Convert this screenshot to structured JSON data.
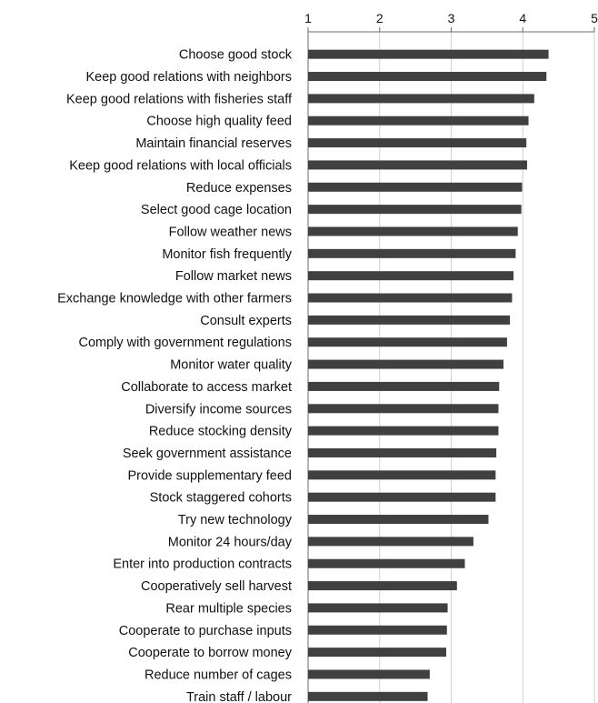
{
  "chart_data": {
    "type": "bar",
    "orientation": "horizontal",
    "title": "",
    "xlabel": "",
    "ylabel": "",
    "xlim": [
      1,
      5
    ],
    "x_ticks": [
      "1",
      "2",
      "3",
      "4",
      "5"
    ],
    "x_axis_position": "top",
    "grid": true,
    "legend": "none",
    "bar_color": "#404040",
    "categories": [
      "Choose good stock",
      "Keep good relations with neighbors",
      "Keep good relations with fisheries staff",
      "Choose high quality feed",
      "Maintain financial reserves",
      "Keep good relations with local officials",
      "Reduce expenses",
      "Select good cage location",
      "Follow weather news",
      "Monitor fish frequently",
      "Follow market news",
      "Exchange knowledge with other farmers",
      "Consult experts",
      "Comply with government regulations",
      "Monitor water quality",
      "Collaborate to access market",
      "Diversify income sources",
      "Reduce stocking density",
      "Seek government assistance",
      "Provide supplementary feed",
      "Stock staggered cohorts",
      "Try new technology",
      "Monitor 24 hours/day",
      "Enter into production contracts",
      "Cooperatively sell harvest",
      "Rear multiple species",
      "Cooperate to purchase inputs",
      "Cooperate to borrow money",
      "Reduce number of cages",
      "Train staff / labour"
    ],
    "values": [
      4.36,
      4.33,
      4.16,
      4.08,
      4.05,
      4.06,
      3.99,
      3.98,
      3.93,
      3.9,
      3.87,
      3.85,
      3.82,
      3.78,
      3.73,
      3.67,
      3.66,
      3.66,
      3.63,
      3.62,
      3.62,
      3.52,
      3.31,
      3.19,
      3.08,
      2.95,
      2.94,
      2.93,
      2.7,
      2.67
    ]
  }
}
